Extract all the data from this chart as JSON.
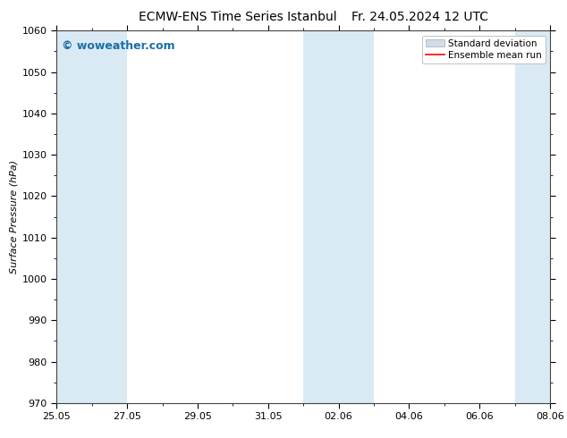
{
  "title_left": "ECMW-ENS Time Series Istanbul",
  "title_right": "Fr. 24.05.2024 12 UTC",
  "ylabel": "Surface Pressure (hPa)",
  "ylim": [
    970,
    1060
  ],
  "yticks": [
    970,
    980,
    990,
    1000,
    1010,
    1020,
    1030,
    1040,
    1050,
    1060
  ],
  "xtick_positions": [
    0,
    2,
    4,
    6,
    8,
    10,
    12,
    14
  ],
  "xtick_labels": [
    "25.05",
    "27.05",
    "29.05",
    "31.05",
    "02.06",
    "04.06",
    "06.06",
    "08.06"
  ],
  "xlim_start": 0,
  "xlim_end": 14,
  "background_color": "#ffffff",
  "plot_bg_color": "#ffffff",
  "shaded_bands": [
    {
      "x_start": 0,
      "x_end": 2,
      "color": "#daeaf5"
    },
    {
      "x_start": 7,
      "x_end": 9,
      "color": "#daeaf5"
    },
    {
      "x_start": 13,
      "x_end": 14,
      "color": "#daeaf5"
    }
  ],
  "watermark_text": "© woweather.com",
  "watermark_color": "#1a6fa8",
  "legend_std_color": "#d0dce8",
  "legend_std_edge": "#aaaaaa",
  "legend_mean_color": "#ff0000",
  "title_fontsize": 10,
  "ylabel_fontsize": 8,
  "tick_fontsize": 8,
  "watermark_fontsize": 9,
  "legend_fontsize": 7.5
}
